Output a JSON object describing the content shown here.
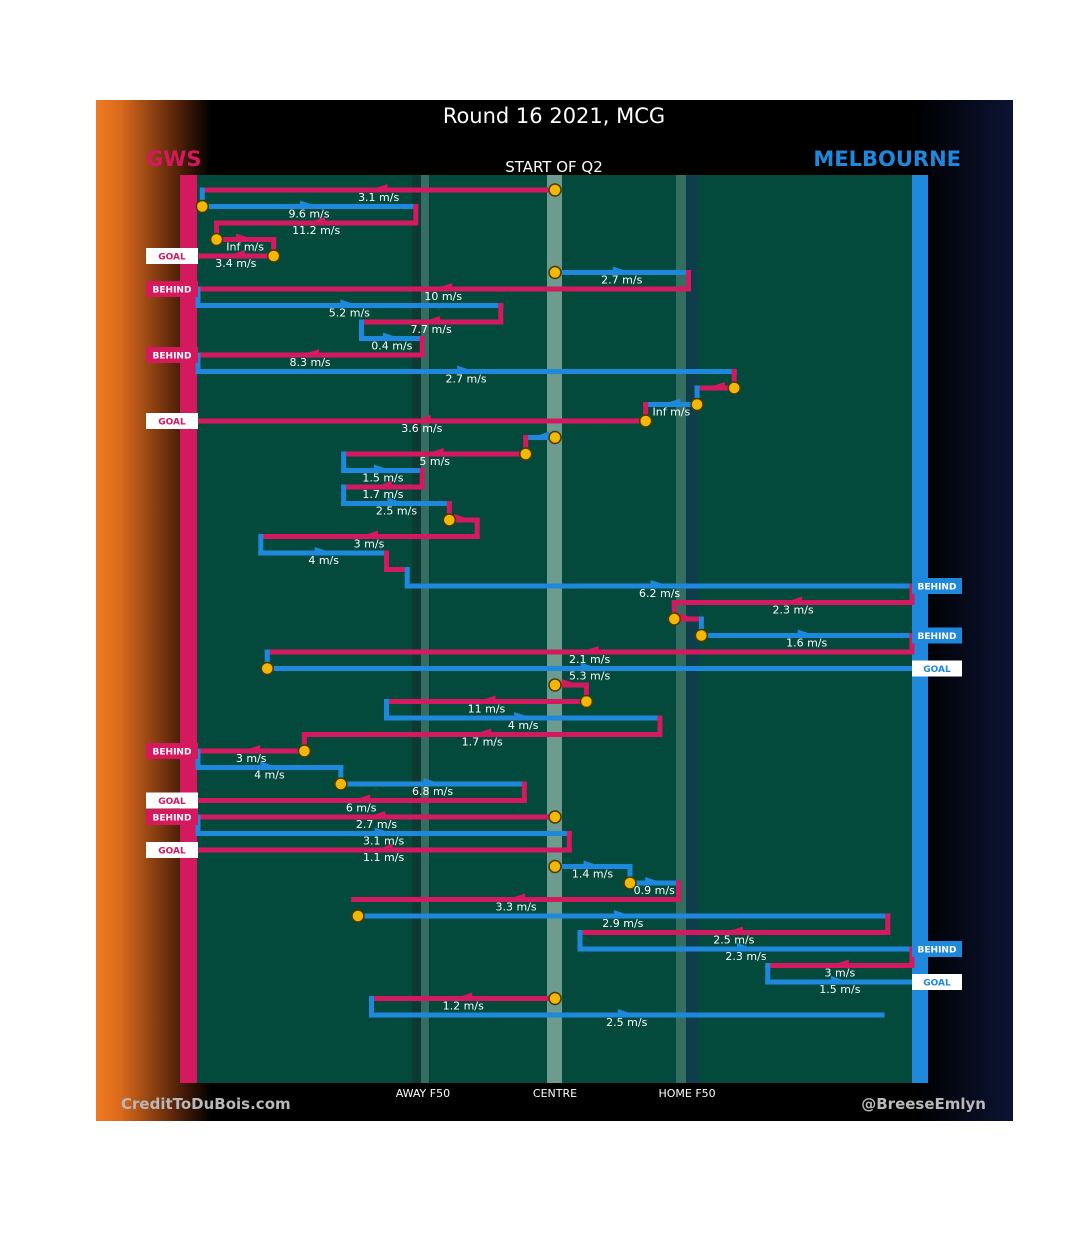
{
  "header": {
    "title": "Round 16 2021, MCG",
    "quarter": "START OF Q2",
    "team_left": "GWS",
    "team_right": "MELBOURNE"
  },
  "footer": {
    "credit_left": "CreditToDuBois.com",
    "credit_right": "@BreeseEmlyn"
  },
  "colors": {
    "gws": "#d4195f",
    "melbourne": "#1e88dc",
    "field": "#044a3c",
    "marker": "#f2b707"
  },
  "chart_data": {
    "type": "chain-flow",
    "x_axis": {
      "range": [
        0,
        100
      ],
      "labels": [
        {
          "label": "AWAY F50",
          "x": 31.5
        },
        {
          "label": "CENTRE",
          "x": 50
        },
        {
          "label": "HOME F50",
          "x": 68.5
        }
      ]
    },
    "chains": [
      {
        "team": "gws",
        "kind": "pass",
        "x0": 50,
        "x1": 0.6,
        "speed": "3.1 m/s",
        "y": 1
      },
      {
        "team": "melbourne",
        "kind": "pass",
        "x0": 0.6,
        "x1": 30.5,
        "speed": "9.6 m/s",
        "y": 2
      },
      {
        "team": "gws",
        "kind": "pass",
        "x0": 30.5,
        "x1": 2.6,
        "speed": "11.2 m/s",
        "y": 3
      },
      {
        "team": "gws",
        "kind": "pass",
        "x0": 2.6,
        "x1": 10.6,
        "speed": "Inf m/s",
        "y": 4
      },
      {
        "team": "gws",
        "kind": "pass",
        "x0": 10.6,
        "x1": 0,
        "speed": "3.4 m/s",
        "y": 5,
        "outcome": "GOAL"
      },
      {
        "team": "melbourne",
        "kind": "pass",
        "x0": 50,
        "x1": 68.7,
        "speed": "2.7 m/s",
        "y": 6
      },
      {
        "team": "gws",
        "kind": "pass",
        "x0": 68.7,
        "x1": 0,
        "speed": "10 m/s",
        "y": 7,
        "outcome": "BEHIND"
      },
      {
        "team": "melbourne",
        "kind": "pass",
        "x0": 0,
        "x1": 42.4,
        "speed": "5.2 m/s",
        "y": 8
      },
      {
        "team": "gws",
        "kind": "pass",
        "x0": 42.4,
        "x1": 22.9,
        "speed": "7.7 m/s",
        "y": 9
      },
      {
        "team": "melbourne",
        "kind": "pass",
        "x0": 22.9,
        "x1": 31.4,
        "speed": "0.4 m/s",
        "y": 10
      },
      {
        "team": "gws",
        "kind": "pass",
        "x0": 31.4,
        "x1": 0,
        "speed": "8.3 m/s",
        "y": 11,
        "outcome": "BEHIND"
      },
      {
        "team": "melbourne",
        "kind": "pass",
        "x0": 0,
        "x1": 75.1,
        "speed": "2.7 m/s",
        "y": 12
      },
      {
        "team": "gws",
        "kind": "pass",
        "x0": 75.1,
        "x1": 69.9,
        "speed": "",
        "y": 13
      },
      {
        "team": "melbourne",
        "kind": "pass",
        "x0": 69.9,
        "x1": 62.7,
        "speed": "Inf m/s",
        "y": 14
      },
      {
        "team": "gws",
        "kind": "pass",
        "x0": 62.7,
        "x1": 0,
        "speed": "3.6 m/s",
        "y": 15,
        "outcome": "GOAL"
      },
      {
        "team": "melbourne",
        "kind": "pass",
        "x0": 50,
        "x1": 45.9,
        "speed": "",
        "y": 16
      },
      {
        "team": "gws",
        "kind": "pass",
        "x0": 45.9,
        "x1": 20.4,
        "speed": "5 m/s",
        "y": 17
      },
      {
        "team": "melbourne",
        "kind": "pass",
        "x0": 20.4,
        "x1": 31.4,
        "speed": "1.5 m/s",
        "y": 18
      },
      {
        "team": "gws",
        "kind": "pass",
        "x0": 31.4,
        "x1": 20.4,
        "speed": "1.7 m/s",
        "y": 19
      },
      {
        "team": "melbourne",
        "kind": "pass",
        "x0": 20.4,
        "x1": 35.2,
        "speed": "2.5 m/s",
        "y": 20
      },
      {
        "team": "gws",
        "kind": "pass",
        "x0": 35.2,
        "x1": 39.1,
        "speed": "",
        "y": 21
      },
      {
        "team": "gws",
        "kind": "pass",
        "x0": 39.1,
        "x1": 8.8,
        "speed": "3 m/s",
        "y": 22
      },
      {
        "team": "melbourne",
        "kind": "pass",
        "x0": 8.8,
        "x1": 26.4,
        "speed": "4 m/s",
        "y": 23
      },
      {
        "team": "gws",
        "kind": "pass",
        "x0": 26.4,
        "x1": 29.3,
        "speed": "",
        "y": 24
      },
      {
        "team": "melbourne",
        "kind": "pass",
        "x0": 29.3,
        "x1": 100,
        "speed": "6.2 m/s",
        "y": 25,
        "outcome": "BEHIND"
      },
      {
        "team": "gws",
        "kind": "pass",
        "x0": 100,
        "x1": 66.7,
        "speed": "2.3 m/s",
        "y": 26
      },
      {
        "team": "gws",
        "kind": "pass",
        "x0": 66.7,
        "x1": 70.5,
        "speed": "",
        "y": 27
      },
      {
        "team": "melbourne",
        "kind": "pass",
        "x0": 70.5,
        "x1": 100,
        "speed": "1.6 m/s",
        "y": 28,
        "outcome": "BEHIND"
      },
      {
        "team": "gws",
        "kind": "pass",
        "x0": 100,
        "x1": 9.7,
        "speed": "2.1 m/s",
        "y": 29
      },
      {
        "team": "melbourne",
        "kind": "pass",
        "x0": 9.7,
        "x1": 100,
        "speed": "5.3 m/s",
        "y": 30,
        "outcome": "GOAL"
      },
      {
        "team": "gws",
        "kind": "pass",
        "x0": 50,
        "x1": 54.4,
        "speed": "",
        "y": 31
      },
      {
        "team": "gws",
        "kind": "pass",
        "x0": 54.4,
        "x1": 26.4,
        "speed": "11 m/s",
        "y": 32
      },
      {
        "team": "melbourne",
        "kind": "pass",
        "x0": 26.4,
        "x1": 64.7,
        "speed": "4 m/s",
        "y": 33
      },
      {
        "team": "gws",
        "kind": "pass",
        "x0": 64.7,
        "x1": 14.9,
        "speed": "1.7 m/s",
        "y": 34
      },
      {
        "team": "gws",
        "kind": "pass",
        "x0": 14.9,
        "x1": 0,
        "speed": "3 m/s",
        "y": 35,
        "outcome": "BEHIND"
      },
      {
        "team": "melbourne",
        "kind": "pass",
        "x0": 0,
        "x1": 20,
        "speed": "4 m/s",
        "y": 36
      },
      {
        "team": "melbourne",
        "kind": "pass",
        "x0": 20,
        "x1": 45.7,
        "speed": "6.8 m/s",
        "y": 37
      },
      {
        "team": "gws",
        "kind": "pass",
        "x0": 45.7,
        "x1": 0,
        "speed": "6 m/s",
        "y": 38,
        "outcome": "GOAL"
      },
      {
        "team": "gws",
        "kind": "pass",
        "x0": 50,
        "x1": 0,
        "speed": "2.7 m/s",
        "y": 39,
        "outcome": "BEHIND"
      },
      {
        "team": "melbourne",
        "kind": "pass",
        "x0": 0,
        "x1": 52,
        "speed": "3.1 m/s",
        "y": 40
      },
      {
        "team": "gws",
        "kind": "pass",
        "x0": 52,
        "x1": 0,
        "speed": "1.1 m/s",
        "y": 41,
        "outcome": "GOAL"
      },
      {
        "team": "melbourne",
        "kind": "pass",
        "x0": 50,
        "x1": 60.5,
        "speed": "1.4 m/s",
        "y": 42
      },
      {
        "team": "melbourne",
        "kind": "pass",
        "x0": 60.5,
        "x1": 67.3,
        "speed": "0.9 m/s",
        "y": 43
      },
      {
        "team": "gws",
        "kind": "pass",
        "x0": 67.3,
        "x1": 21.8,
        "speed": "3.3 m/s",
        "y": 44
      },
      {
        "team": "melbourne",
        "kind": "pass",
        "x0": 22.4,
        "x1": 96.6,
        "speed": "2.9 m/s",
        "y": 45
      },
      {
        "team": "gws",
        "kind": "pass",
        "x0": 96.6,
        "x1": 53.5,
        "speed": "2.5 m/s",
        "y": 46
      },
      {
        "team": "melbourne",
        "kind": "pass",
        "x0": 53.5,
        "x1": 100,
        "speed": "2.3 m/s",
        "y": 47,
        "outcome": "BEHIND"
      },
      {
        "team": "gws",
        "kind": "pass",
        "x0": 100,
        "x1": 79.8,
        "speed": "3 m/s",
        "y": 48
      },
      {
        "team": "melbourne",
        "kind": "pass",
        "x0": 79.8,
        "x1": 100,
        "speed": "1.5 m/s",
        "y": 49,
        "outcome": "GOAL"
      },
      {
        "team": "gws",
        "kind": "pass",
        "x0": 50,
        "x1": 24.3,
        "speed": "1.2 m/s",
        "y": 50
      },
      {
        "team": "melbourne",
        "kind": "pass",
        "x0": 24.3,
        "x1": 95.8,
        "speed": "2.5 m/s",
        "y": 51
      }
    ],
    "markers": [
      {
        "x": 50,
        "y": 1
      },
      {
        "x": 0.6,
        "y": 2
      },
      {
        "x": 2.6,
        "y": 4
      },
      {
        "x": 10.6,
        "y": 5
      },
      {
        "x": 50,
        "y": 6
      },
      {
        "x": 75.1,
        "y": 13
      },
      {
        "x": 69.9,
        "y": 14
      },
      {
        "x": 62.7,
        "y": 15
      },
      {
        "x": 50,
        "y": 16
      },
      {
        "x": 45.9,
        "y": 17
      },
      {
        "x": 35.2,
        "y": 21
      },
      {
        "x": 66.7,
        "y": 27
      },
      {
        "x": 70.5,
        "y": 28
      },
      {
        "x": 9.7,
        "y": 30
      },
      {
        "x": 50,
        "y": 31
      },
      {
        "x": 54.4,
        "y": 32
      },
      {
        "x": 14.9,
        "y": 35
      },
      {
        "x": 20,
        "y": 37
      },
      {
        "x": 50,
        "y": 39
      },
      {
        "x": 50,
        "y": 42
      },
      {
        "x": 60.5,
        "y": 43
      },
      {
        "x": 22.4,
        "y": 45
      },
      {
        "x": 50,
        "y": 50
      }
    ]
  }
}
